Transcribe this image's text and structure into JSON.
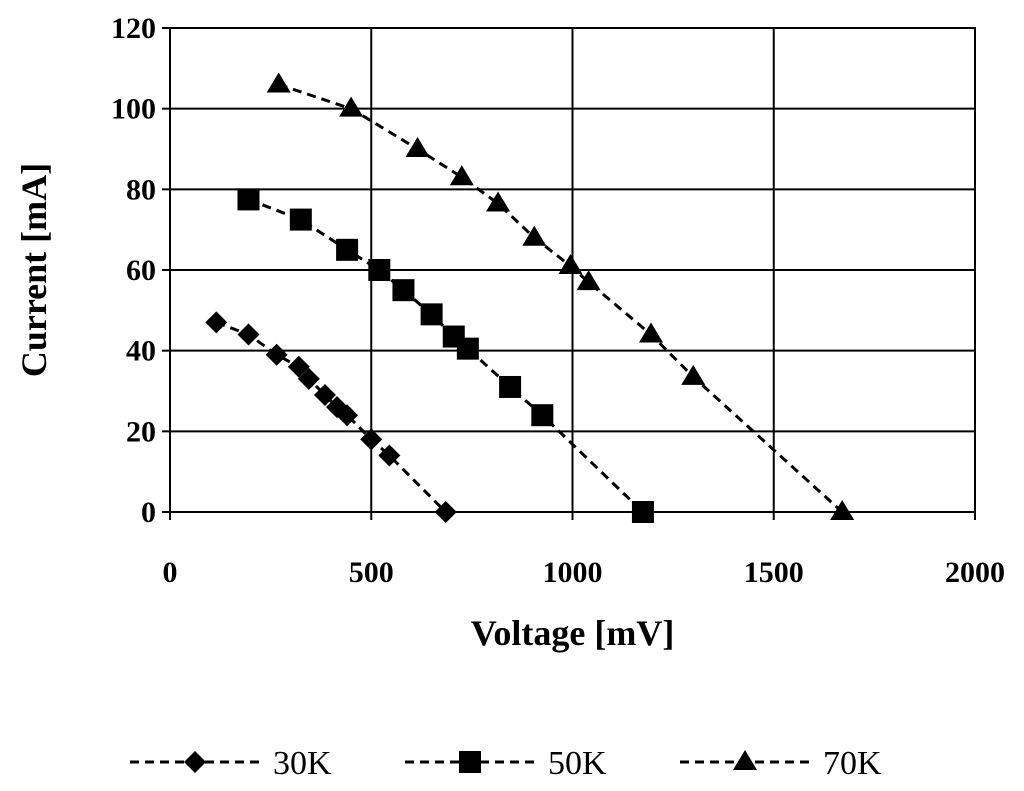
{
  "chart_data": {
    "type": "line",
    "title": "",
    "xlabel": "Voltage [mV]",
    "ylabel": "Current [mA]",
    "xlim": [
      0,
      2000
    ],
    "ylim": [
      0,
      120
    ],
    "x_ticks": [
      0,
      500,
      1000,
      1500,
      2000
    ],
    "y_ticks": [
      0,
      20,
      40,
      60,
      80,
      100,
      120
    ],
    "grid": true,
    "legend_position": "bottom",
    "line_style": "dashed",
    "line_color": "#000000",
    "series": [
      {
        "name": "30K",
        "marker": "diamond",
        "points": [
          [
            115,
            47
          ],
          [
            195,
            44
          ],
          [
            265,
            39
          ],
          [
            320,
            36
          ],
          [
            345,
            33
          ],
          [
            385,
            29
          ],
          [
            415,
            26
          ],
          [
            440,
            24
          ],
          [
            500,
            18
          ],
          [
            545,
            14
          ],
          [
            685,
            0
          ]
        ]
      },
      {
        "name": "50K",
        "marker": "square",
        "points": [
          [
            195,
            77.5
          ],
          [
            325,
            72.5
          ],
          [
            440,
            65
          ],
          [
            520,
            60
          ],
          [
            580,
            55
          ],
          [
            650,
            49
          ],
          [
            705,
            43.5
          ],
          [
            740,
            40.5
          ],
          [
            845,
            31
          ],
          [
            925,
            24
          ],
          [
            1175,
            0
          ]
        ]
      },
      {
        "name": "70K",
        "marker": "triangle",
        "points": [
          [
            270,
            106
          ],
          [
            450,
            100
          ],
          [
            615,
            90
          ],
          [
            725,
            83
          ],
          [
            815,
            76.5
          ],
          [
            905,
            68
          ],
          [
            995,
            61
          ],
          [
            1040,
            57
          ],
          [
            1195,
            44
          ],
          [
            1300,
            33.5
          ],
          [
            1670,
            0
          ]
        ]
      }
    ]
  }
}
